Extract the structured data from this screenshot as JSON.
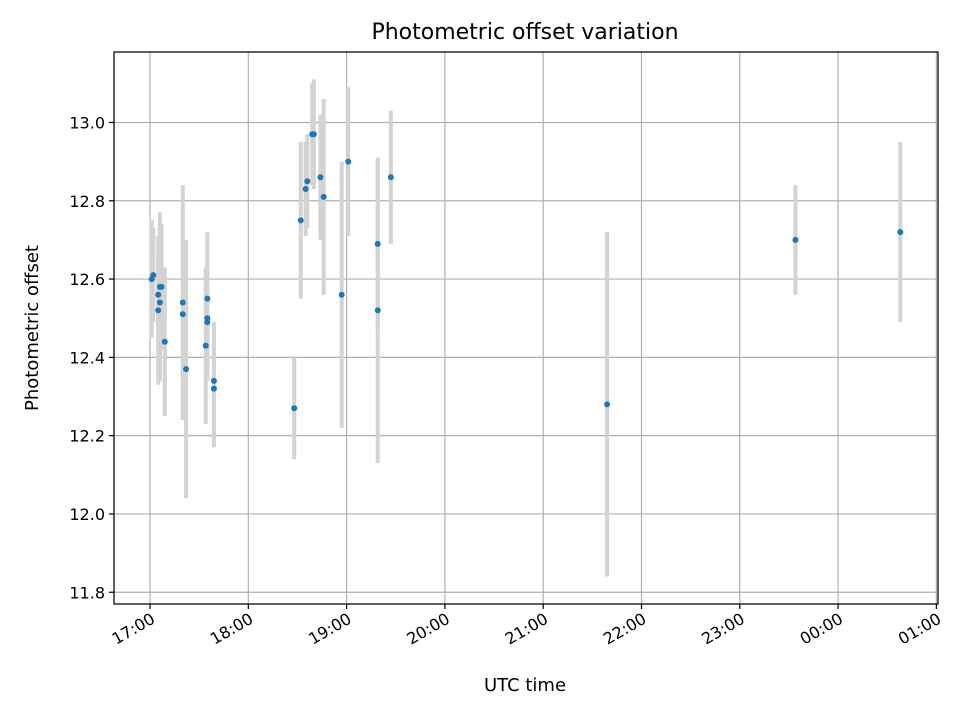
{
  "chart_data": {
    "type": "scatter",
    "title": "Photometric offset variation",
    "xlabel": "UTC time",
    "ylabel": "Photometric offset",
    "xlim": [
      "16:38",
      "01:01"
    ],
    "ylim": [
      11.77,
      13.18
    ],
    "x_tick_labels": [
      "17:00",
      "18:00",
      "19:00",
      "20:00",
      "21:00",
      "22:00",
      "23:00",
      "00:00",
      "01:00"
    ],
    "y_tick_labels": [
      "11.8",
      "12.0",
      "12.2",
      "12.4",
      "12.6",
      "12.8",
      "13.0"
    ],
    "y_ticks": [
      11.8,
      12.0,
      12.2,
      12.4,
      12.6,
      12.8,
      13.0
    ],
    "grid": true,
    "colors": {
      "point": "#1f77b4",
      "errorbar": "#d3d3d3",
      "grid": "#b0b0b0"
    },
    "series": [
      {
        "points": [
          {
            "x": "17:01",
            "y": 12.6,
            "err": 0.15
          },
          {
            "x": "17:02",
            "y": 12.61,
            "err": 0.12
          },
          {
            "x": "17:05",
            "y": 12.56,
            "err": 0.1
          },
          {
            "x": "17:05",
            "y": 12.52,
            "err": 0.19
          },
          {
            "x": "17:06",
            "y": 12.58,
            "err": 0.19
          },
          {
            "x": "17:06",
            "y": 12.54,
            "err": 0.2
          },
          {
            "x": "17:07",
            "y": 12.58,
            "err": 0.16
          },
          {
            "x": "17:09",
            "y": 12.44,
            "err": 0.19
          },
          {
            "x": "17:20",
            "y": 12.54,
            "err": 0.3
          },
          {
            "x": "17:20",
            "y": 12.51,
            "err": 0.27
          },
          {
            "x": "17:22",
            "y": 12.37,
            "err": 0.33
          },
          {
            "x": "17:34",
            "y": 12.43,
            "err": 0.2
          },
          {
            "x": "17:35",
            "y": 12.55,
            "err": 0.17
          },
          {
            "x": "17:35",
            "y": 12.5,
            "err": 0.14
          },
          {
            "x": "17:35",
            "y": 12.49,
            "err": 0.15
          },
          {
            "x": "17:39",
            "y": 12.34,
            "err": 0.15
          },
          {
            "x": "17:39",
            "y": 12.32,
            "err": 0.15
          },
          {
            "x": "18:28",
            "y": 12.27,
            "err": 0.13
          },
          {
            "x": "18:32",
            "y": 12.75,
            "err": 0.2
          },
          {
            "x": "18:35",
            "y": 12.83,
            "err": 0.12
          },
          {
            "x": "18:36",
            "y": 12.85,
            "err": 0.12
          },
          {
            "x": "18:39",
            "y": 12.97,
            "err": 0.13
          },
          {
            "x": "18:40",
            "y": 12.97,
            "err": 0.14
          },
          {
            "x": "18:44",
            "y": 12.86,
            "err": 0.16
          },
          {
            "x": "18:46",
            "y": 12.81,
            "err": 0.25
          },
          {
            "x": "18:57",
            "y": 12.56,
            "err": 0.34
          },
          {
            "x": "19:01",
            "y": 12.9,
            "err": 0.19
          },
          {
            "x": "19:19",
            "y": 12.69,
            "err": 0.22
          },
          {
            "x": "19:19",
            "y": 12.52,
            "err": 0.39
          },
          {
            "x": "19:27",
            "y": 12.86,
            "err": 0.17
          },
          {
            "x": "21:39",
            "y": 12.28,
            "err": 0.44
          },
          {
            "x": "23:34",
            "y": 12.7,
            "err": 0.14
          },
          {
            "x": "00:38",
            "y": 12.72,
            "err": 0.23
          }
        ]
      }
    ]
  }
}
